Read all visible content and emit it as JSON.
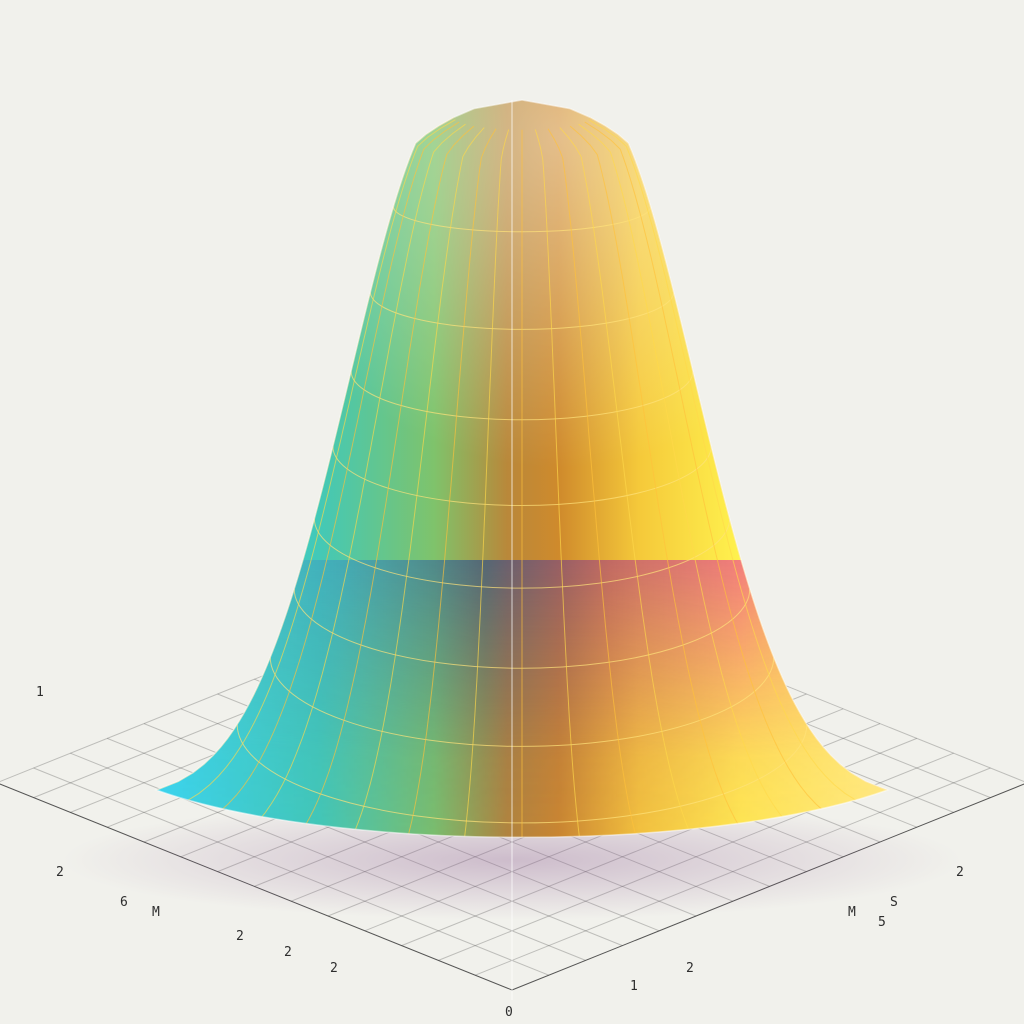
{
  "scene": {
    "description_name": "gaussian-bell-surface",
    "colors": {
      "background": "#f1f1ec",
      "grid_line": "#3a3a3a",
      "wire_line": "#ffd44a",
      "cyan": "#3fd6f0",
      "teal": "#3fc9a0",
      "green": "#8fd36a",
      "yellow": "#fff34a",
      "orange": "#d98a2a",
      "brown": "#a0622a",
      "pink": "#e8458a",
      "navy": "#2e4f8a",
      "blue": "#3a78c2"
    },
    "tick_labels": [
      "2",
      "2",
      "2",
      "2",
      "2",
      "1",
      "0",
      "S",
      "6",
      "M",
      "M",
      "5",
      "1",
      "2"
    ]
  }
}
